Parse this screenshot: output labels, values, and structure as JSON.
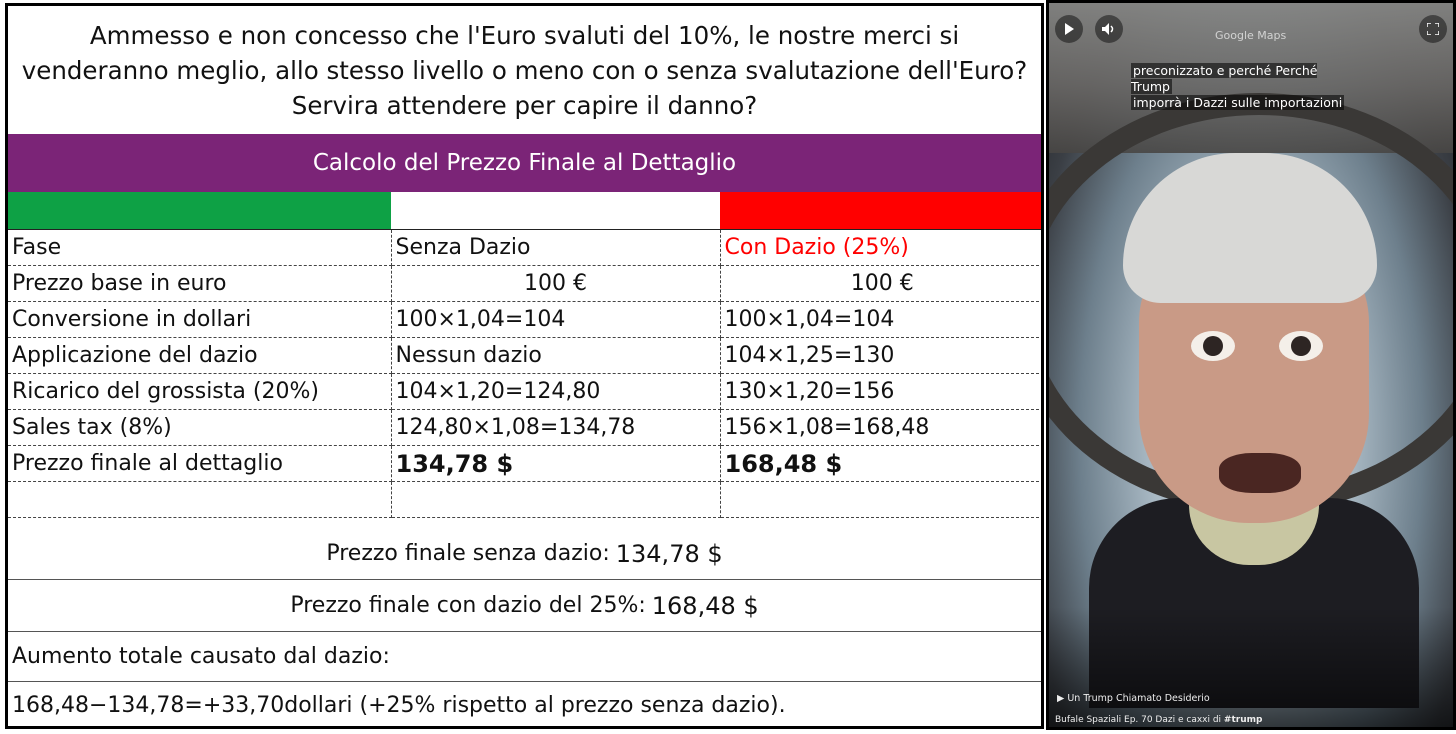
{
  "question": "Ammesso e non concesso che l'Euro svaluti del 10%, le nostre merci si venderanno meglio, allo stesso livello o meno con o senza svalutazione dell'Euro? Servira attendere per capire il danno?",
  "banner_title": "Calcolo del Prezzo Finale al Dettaglio",
  "flag_colors": {
    "green": "#0ea145",
    "white": "#ffffff",
    "red": "#ff0000"
  },
  "table": {
    "header": [
      "Fase",
      "Senza Dazio",
      "Con Dazio (25%)"
    ],
    "rows": [
      [
        "Prezzo base in euro",
        "100 €",
        "100 €"
      ],
      [
        "Conversione in dollari",
        "100×1,04=104",
        "100×1,04=104"
      ],
      [
        "Applicazione del dazio",
        "Nessun dazio",
        "104×1,25=130"
      ],
      [
        "Ricarico del grossista (20%)",
        "104×1,20=124,80",
        "130×1,20=156"
      ],
      [
        "Sales tax (8%)",
        "124,80×1,08=134,78",
        "156×1,08=168,48"
      ],
      [
        "Prezzo finale al dettaglio",
        "134,78 $",
        "168,48 $"
      ],
      [
        "",
        "",
        ""
      ]
    ]
  },
  "summary": {
    "line1_label": "Prezzo finale senza dazio:",
    "line1_value": "134,78 $",
    "line2_label": "Prezzo finale con dazio del 25%:",
    "line2_value": "168,48 $",
    "line3": "Aumento totale causato dal dazio:",
    "line4": "168,48−134,78=+33,70dollari (+25% rispetto al prezzo senza dazio)."
  },
  "video": {
    "maps_label": "Google Maps",
    "caption_line1": "preconizzato e perché Perché Trump",
    "caption_line2": "imporrà i Dazzi sulle importazioni",
    "playlist": "Un Trump Chiamato Desiderio",
    "channel_prefix": "Bufale Spaziali Ep. 70 Dazi e caxxi di ",
    "channel_tag": "#trump",
    "icons": {
      "play": "play-icon",
      "volume": "volume-icon",
      "fullscreen": "fullscreen-icon"
    }
  }
}
